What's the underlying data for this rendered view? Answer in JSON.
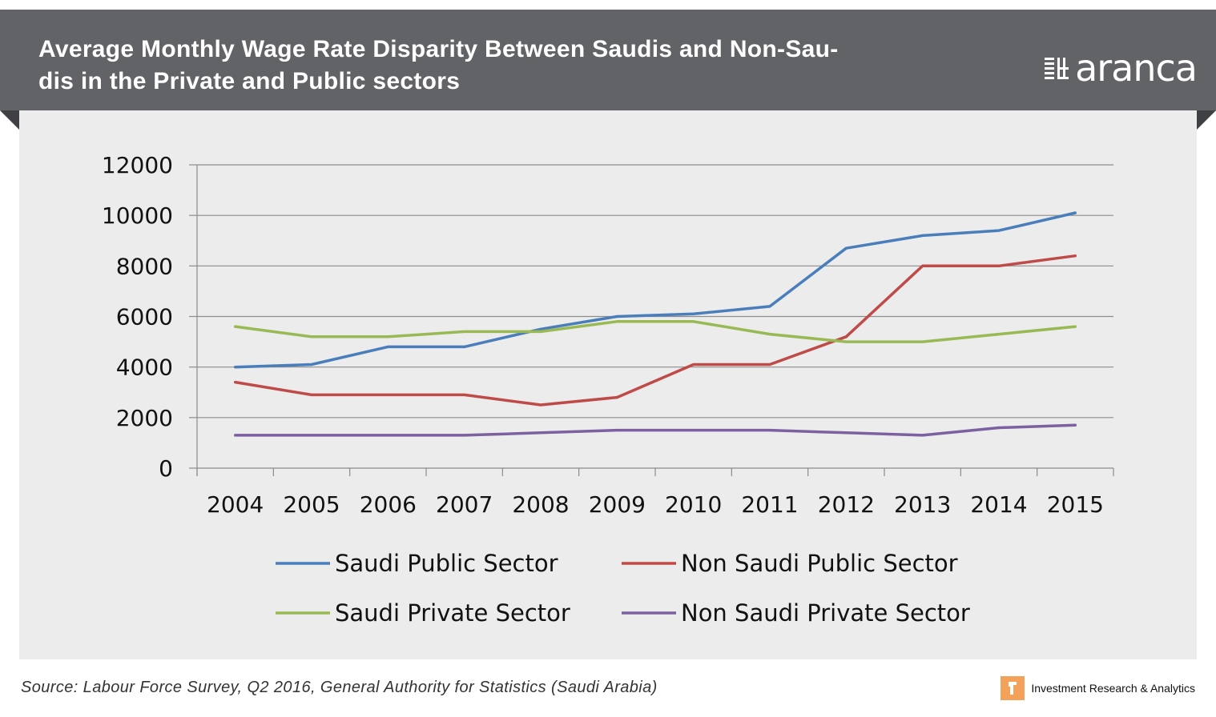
{
  "header": {
    "title": "Average Monthly Wage Rate Disparity Between Saudis and Non-Saudis in the Private and Public sectors",
    "title_line1": "Average Monthly Wage Rate Disparity Between Saudis and Non-Sau-",
    "title_line2": "dis in the Private and Public sectors",
    "logo_text": "aranca"
  },
  "footer": {
    "source": "Source: Labour Force Survey, Q2 2016, General Authority for Statistics (Saudi Arabia)",
    "brand_tagline": "Investment Research & Analytics"
  },
  "colors": {
    "banner": "#626366",
    "panel": "#ececec",
    "accent_orange": "#f4a259"
  },
  "chart_data": {
    "type": "line",
    "title": "",
    "xlabel": "",
    "ylabel": "",
    "x": [
      "2004",
      "2005",
      "2006",
      "2007",
      "2008",
      "2009",
      "2010",
      "2011",
      "2012",
      "2013",
      "2014",
      "2015"
    ],
    "ylim": [
      0,
      12000
    ],
    "yticks": [
      0,
      2000,
      4000,
      6000,
      8000,
      10000,
      12000
    ],
    "grid": true,
    "legend_position": "bottom",
    "series": [
      {
        "name": "Saudi Public Sector",
        "color": "#4a7ebb",
        "values": [
          4000,
          4100,
          4800,
          4800,
          5500,
          6000,
          6100,
          6400,
          8700,
          9200,
          9400,
          10100
        ]
      },
      {
        "name": "Non Saudi Public Sector",
        "color": "#be4b48",
        "values": [
          3400,
          2900,
          2900,
          2900,
          2500,
          2800,
          4100,
          4100,
          5200,
          8000,
          8000,
          8400
        ]
      },
      {
        "name": "Saudi Private Sector",
        "color": "#98b954",
        "values": [
          5600,
          5200,
          5200,
          5400,
          5400,
          5800,
          5800,
          5300,
          5000,
          5000,
          5300,
          5600
        ]
      },
      {
        "name": "Non Saudi Private Sector",
        "color": "#7d60a0",
        "values": [
          1300,
          1300,
          1300,
          1300,
          1400,
          1500,
          1500,
          1500,
          1400,
          1300,
          1600,
          1700
        ]
      }
    ]
  }
}
